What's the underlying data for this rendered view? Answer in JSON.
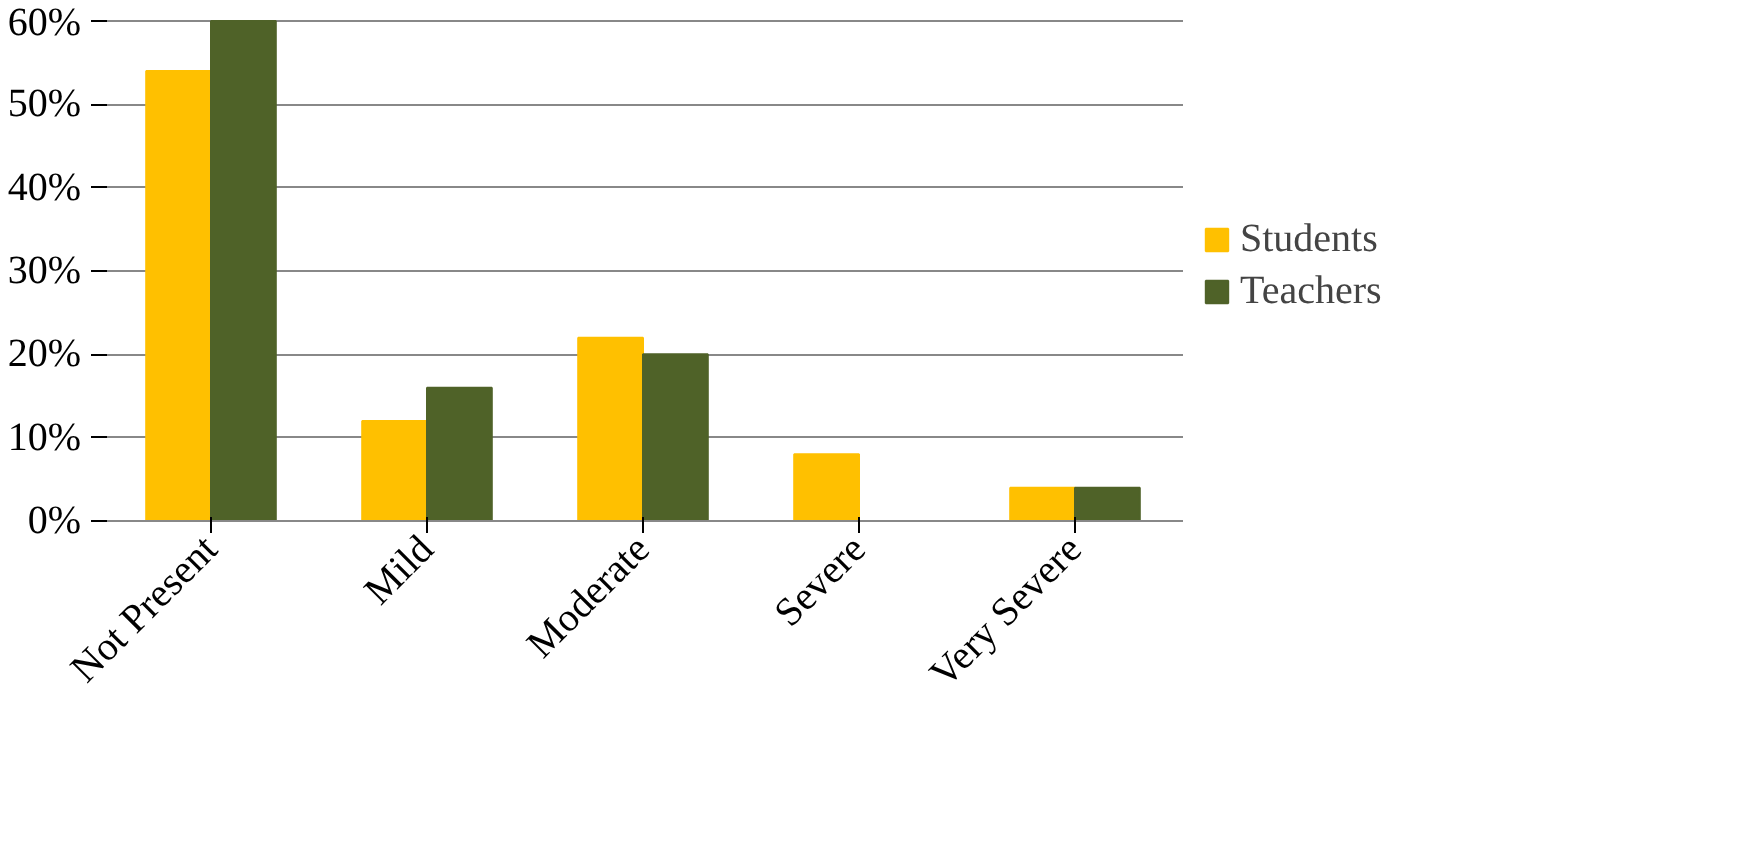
{
  "chart_data": {
    "type": "bar",
    "categories": [
      "Not Present",
      "Mild",
      "Moderate",
      "Severe",
      "Very Severe"
    ],
    "series": [
      {
        "name": "Students",
        "color": "#ffc000",
        "values": [
          54,
          12,
          22,
          8,
          4
        ]
      },
      {
        "name": "Teachers",
        "color": "#4f6228",
        "values": [
          60,
          16,
          20,
          0,
          4
        ]
      }
    ],
    "ylim": [
      0,
      60
    ],
    "yticks": [
      {
        "value": 0,
        "label": "0%"
      },
      {
        "value": 10,
        "label": "10%"
      },
      {
        "value": 20,
        "label": "20%"
      },
      {
        "value": 30,
        "label": "30%"
      },
      {
        "value": 40,
        "label": "40%"
      },
      {
        "value": 50,
        "label": "50%"
      },
      {
        "value": 60,
        "label": "60%"
      }
    ],
    "grid": "y",
    "legend": "right"
  }
}
